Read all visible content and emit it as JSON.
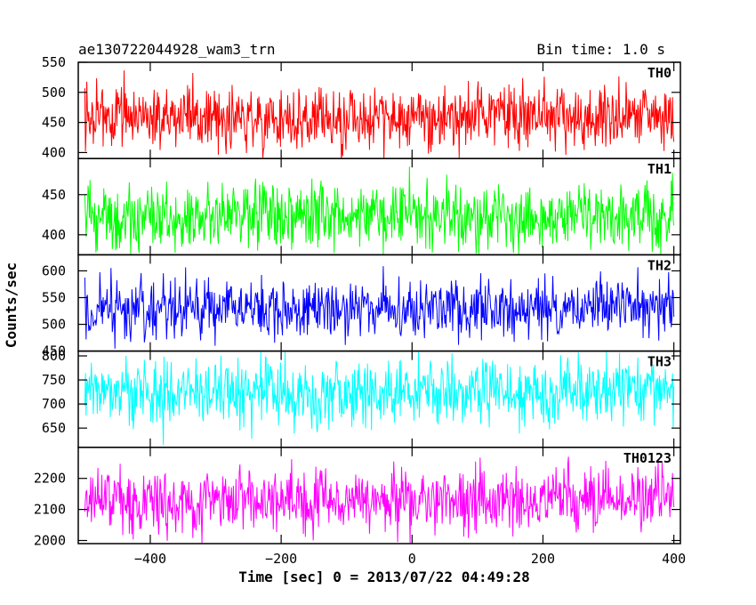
{
  "header": {
    "title": "ae130722044928_wam3_trn",
    "bin_time": "Bin time: 1.0 s"
  },
  "chart_data": {
    "type": "line",
    "title": "ae130722044928_wam3_trn",
    "subtitle": "Bin time: 1.0 s",
    "xlabel": "Time [sec] 0 = 2013/07/22 04:49:28",
    "ylabel": "Counts/sec",
    "xlim": [
      -510,
      410
    ],
    "x_start": -500,
    "x_end": 400,
    "x_step": 1,
    "xticks": [
      -400,
      -200,
      0,
      200,
      400
    ],
    "xtick_labels": [
      "−400",
      "−200",
      "0",
      "200",
      "400"
    ],
    "grid": false,
    "series": [
      {
        "name": "TH0",
        "color": "#ff0000",
        "ylim": [
          390,
          550
        ],
        "yticks": [
          400,
          450,
          500,
          550
        ],
        "ytick_labels": [
          "400",
          "450",
          "500",
          "550"
        ],
        "mean": 458,
        "spread": 27,
        "min": 385,
        "max": 550
      },
      {
        "name": "TH1",
        "color": "#00ff00",
        "ylim": [
          375,
          495
        ],
        "yticks": [
          400,
          450
        ],
        "ytick_labels": [
          "400",
          "450"
        ],
        "mean": 423,
        "spread": 21,
        "min": 376,
        "max": 495
      },
      {
        "name": "TH2",
        "color": "#0000ff",
        "ylim": [
          450,
          630
        ],
        "yticks": [
          450,
          500,
          550,
          600
        ],
        "ytick_labels": [
          "450",
          "500",
          "550",
          "600"
        ],
        "mean": 531,
        "spread": 27,
        "min": 452,
        "max": 628
      },
      {
        "name": "TH3",
        "color": "#00ffff",
        "ylim": [
          610,
          810
        ],
        "yticks": [
          650,
          700,
          750,
          800
        ],
        "ytick_labels": [
          "650",
          "700",
          "750",
          "800"
        ],
        "mean": 725,
        "spread": 33,
        "min": 615,
        "max": 810
      },
      {
        "name": "TH0123",
        "color": "#ff00ff",
        "ylim": [
          1990,
          2300
        ],
        "yticks": [
          2000,
          2100,
          2200
        ],
        "ytick_labels": [
          "2000",
          "2100",
          "2200"
        ],
        "mean": 2130,
        "spread": 50,
        "min": 1992,
        "max": 2300
      }
    ]
  }
}
